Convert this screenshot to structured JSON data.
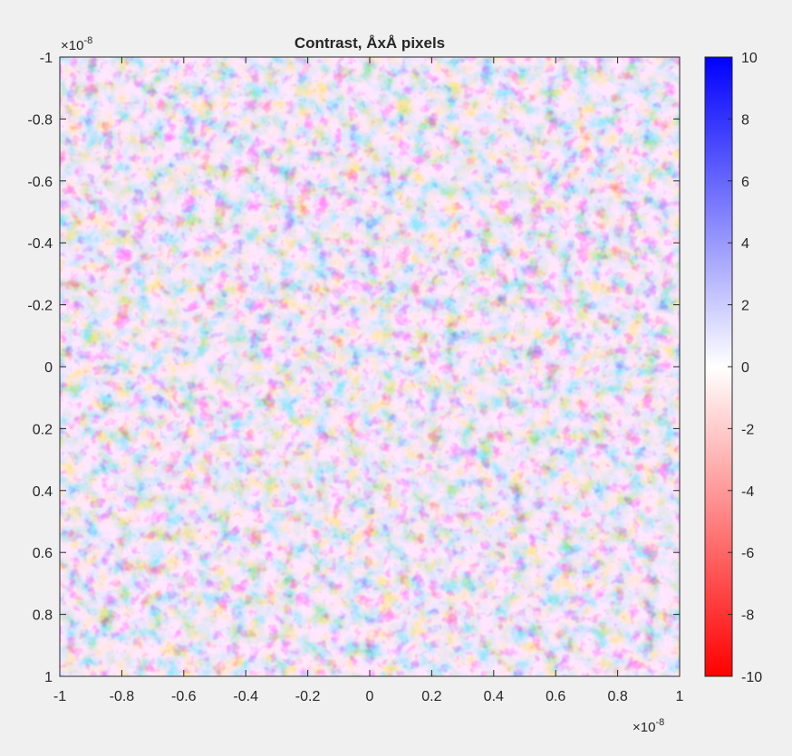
{
  "chart_data": {
    "type": "heatmap",
    "title": "Contrast, ÅxÅ pixels",
    "xlabel": "",
    "ylabel": "",
    "x_exponent_label": "×10",
    "x_exponent_power": "-8",
    "y_exponent_label": "×10",
    "y_exponent_power": "-8",
    "xlim": [
      -1,
      1
    ],
    "ylim": [
      -1,
      1
    ],
    "y_direction": "reverse",
    "x_ticks": [
      -1,
      -0.8,
      -0.6,
      -0.4,
      -0.2,
      0,
      0.2,
      0.4,
      0.6,
      0.8,
      1
    ],
    "x_tick_labels": [
      "-1",
      "-0.8",
      "-0.6",
      "-0.4",
      "-0.2",
      "0",
      "0.2",
      "0.4",
      "0.6",
      "0.8",
      "1"
    ],
    "y_ticks": [
      -1,
      -0.8,
      -0.6,
      -0.4,
      -0.2,
      0,
      0.2,
      0.4,
      0.6,
      0.8,
      1
    ],
    "y_tick_labels": [
      "-1",
      "-0.8",
      "-0.6",
      "-0.4",
      "-0.2",
      "0",
      "0.2",
      "0.4",
      "0.6",
      "0.8",
      "1"
    ],
    "grid": false,
    "colorbar": {
      "placement": "right",
      "clim": [
        -10,
        10
      ],
      "ticks": [
        10,
        8,
        6,
        4,
        2,
        0,
        -2,
        -4,
        -6,
        -8,
        -10
      ],
      "tick_labels": [
        "10",
        "8",
        "6",
        "4",
        "2",
        "0",
        "-2",
        "-4",
        "-6",
        "-8",
        "-10"
      ],
      "colormap": [
        "#ff0000",
        "#ffffff",
        "#0000ff"
      ]
    },
    "value_distribution": "random speckle noise, values mostly within -8 to 8"
  }
}
